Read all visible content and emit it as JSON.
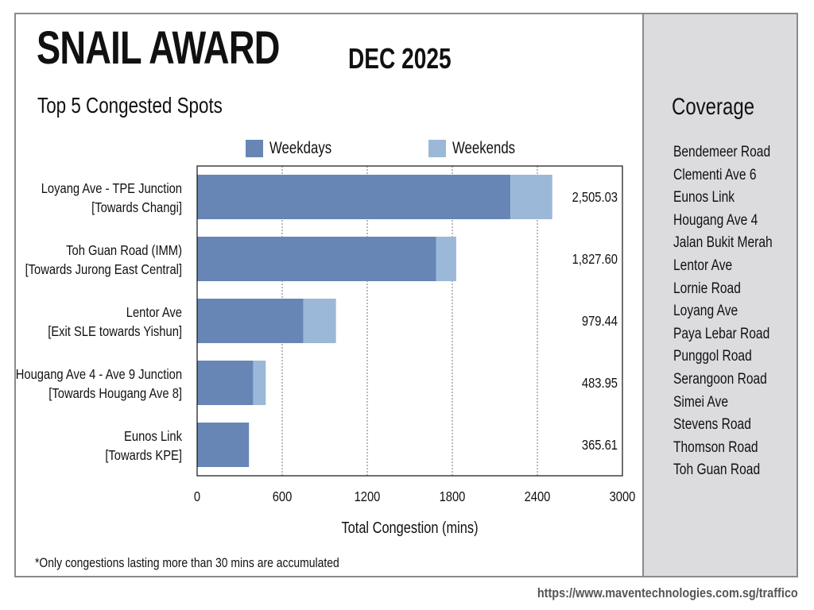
{
  "header": {
    "title": "SNAIL AWARD",
    "period": "DEC 2025",
    "subtitle": "Top 5 Congested Spots"
  },
  "colors": {
    "weekdays": "#6886b5",
    "weekends": "#9cb8d8",
    "sidebar_bg": "#dcdcdf",
    "frame": "#8a8a8a"
  },
  "chart_data": {
    "type": "bar",
    "orientation": "horizontal",
    "stacked": true,
    "categories": [
      [
        "Loyang Ave - TPE Junction",
        "[Towards Changi]"
      ],
      [
        "Toh Guan Road (IMM)",
        "[Towards Jurong East Central]"
      ],
      [
        "Lentor Ave",
        "[Exit SLE towards Yishun]"
      ],
      [
        "Hougang Ave 4 - Ave 9 Junction",
        "[Towards Hougang Ave 8]"
      ],
      [
        "Eunos Link",
        "[Towards KPE]"
      ]
    ],
    "series": [
      {
        "name": "Weekdays",
        "values": [
          2210,
          1685,
          750,
          395,
          365.61
        ]
      },
      {
        "name": "Weekends",
        "values": [
          295.03,
          142.6,
          229.44,
          88.95,
          0
        ]
      }
    ],
    "totals": [
      "2,505.03",
      "1,827.60",
      "979.44",
      "483.95",
      "365.61"
    ],
    "xlabel": "Total Congestion (mins)",
    "ylabel": "",
    "xlim": [
      0,
      3000
    ],
    "xticks": [
      0,
      600,
      1200,
      1800,
      2400,
      3000
    ],
    "grid": "vertical-dashed",
    "legend": "top"
  },
  "sidebar": {
    "title": "Coverage",
    "items": [
      "Bendemeer Road",
      "Clementi Ave 6",
      "Eunos Link",
      "Hougang Ave 4",
      "Jalan Bukit Merah",
      "Lentor Ave",
      "Lornie Road",
      "Loyang Ave",
      "Paya Lebar Road",
      "Punggol Road",
      "Serangoon Road",
      "Simei Ave",
      "Stevens Road",
      "Thomson Road",
      "Toh Guan Road"
    ]
  },
  "footnote": "*Only congestions lasting more than 30 mins are accumulated",
  "source_url": "https://www.maventechnologies.com.sg/traffico"
}
